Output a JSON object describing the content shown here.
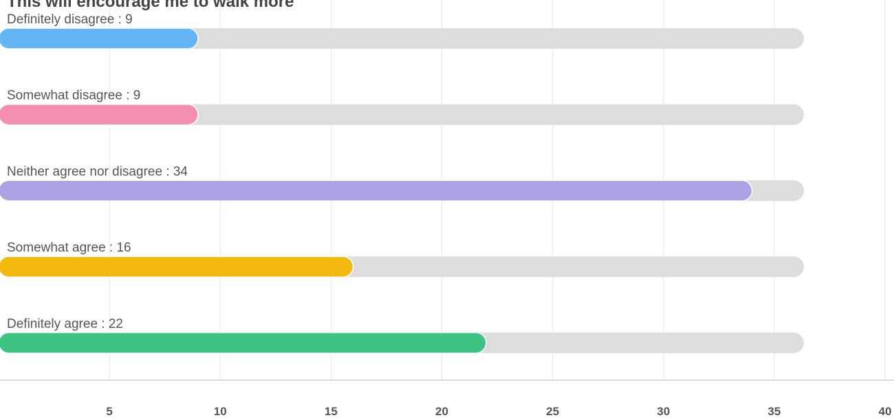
{
  "chart_data": {
    "type": "bar",
    "orientation": "horizontal",
    "title": "This will encourage me to walk more",
    "categories": [
      "Definitely disagree : 9",
      "Somewhat disagree : 9",
      "Neither agree nor disagree : 34",
      "Somewhat agree : 16",
      "Definitely agree : 22"
    ],
    "values": [
      9,
      9,
      34,
      16,
      22
    ],
    "colors": [
      "#64b5f6",
      "#f48fb1",
      "#ada3e4",
      "#f4b90e",
      "#3ec482"
    ],
    "xlim": [
      0,
      40
    ],
    "xticks": [
      5,
      10,
      15,
      20,
      25,
      30,
      35,
      40
    ],
    "grid": true
  }
}
